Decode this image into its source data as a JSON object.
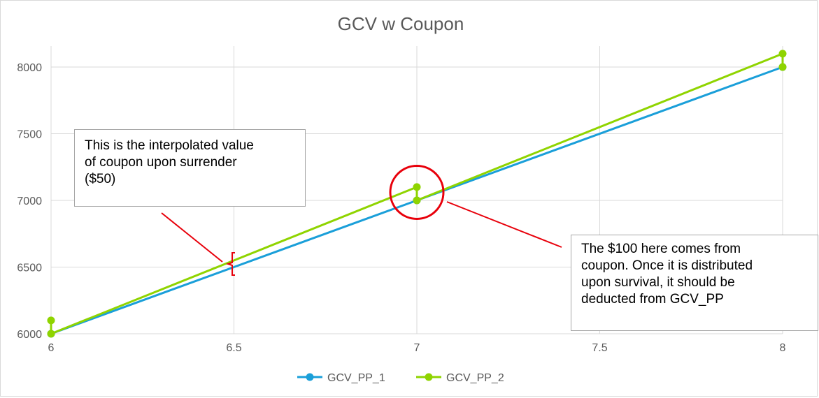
{
  "chart_data": {
    "type": "line",
    "title": "GCV w Coupon",
    "xlabel": "",
    "ylabel": "",
    "xlim": [
      6,
      8
    ],
    "ylim": [
      6000,
      8000
    ],
    "x_ticks": [
      "6",
      "6.5",
      "7",
      "7.5",
      "8"
    ],
    "y_ticks": [
      "6000",
      "6500",
      "7000",
      "7500",
      "8000"
    ],
    "grid": true,
    "legend_position": "bottom",
    "series": [
      {
        "name": "GCV_PP_1",
        "color": "#1a9fd9",
        "points": [
          [
            6,
            6000
          ],
          [
            7,
            7000
          ],
          [
            8,
            8000
          ]
        ]
      },
      {
        "name": "GCV_PP_2",
        "color": "#8fd400",
        "points": [
          [
            6,
            6100
          ],
          [
            6,
            6000
          ],
          [
            7,
            7100
          ],
          [
            7,
            7000
          ],
          [
            8,
            8100
          ],
          [
            8,
            8000
          ]
        ]
      }
    ],
    "annotations": [
      {
        "id": "left",
        "text": "This is the interpolated value\nof coupon upon surrender\n($50)"
      },
      {
        "id": "right",
        "text": "The $100 here comes from\ncoupon. Once it is distributed\nupon survival, it should be\ndeducted from GCV_PP"
      }
    ]
  },
  "colors": {
    "grid": "#d9d9d9",
    "axis_text": "#595959",
    "annotation": "#e8000b"
  }
}
